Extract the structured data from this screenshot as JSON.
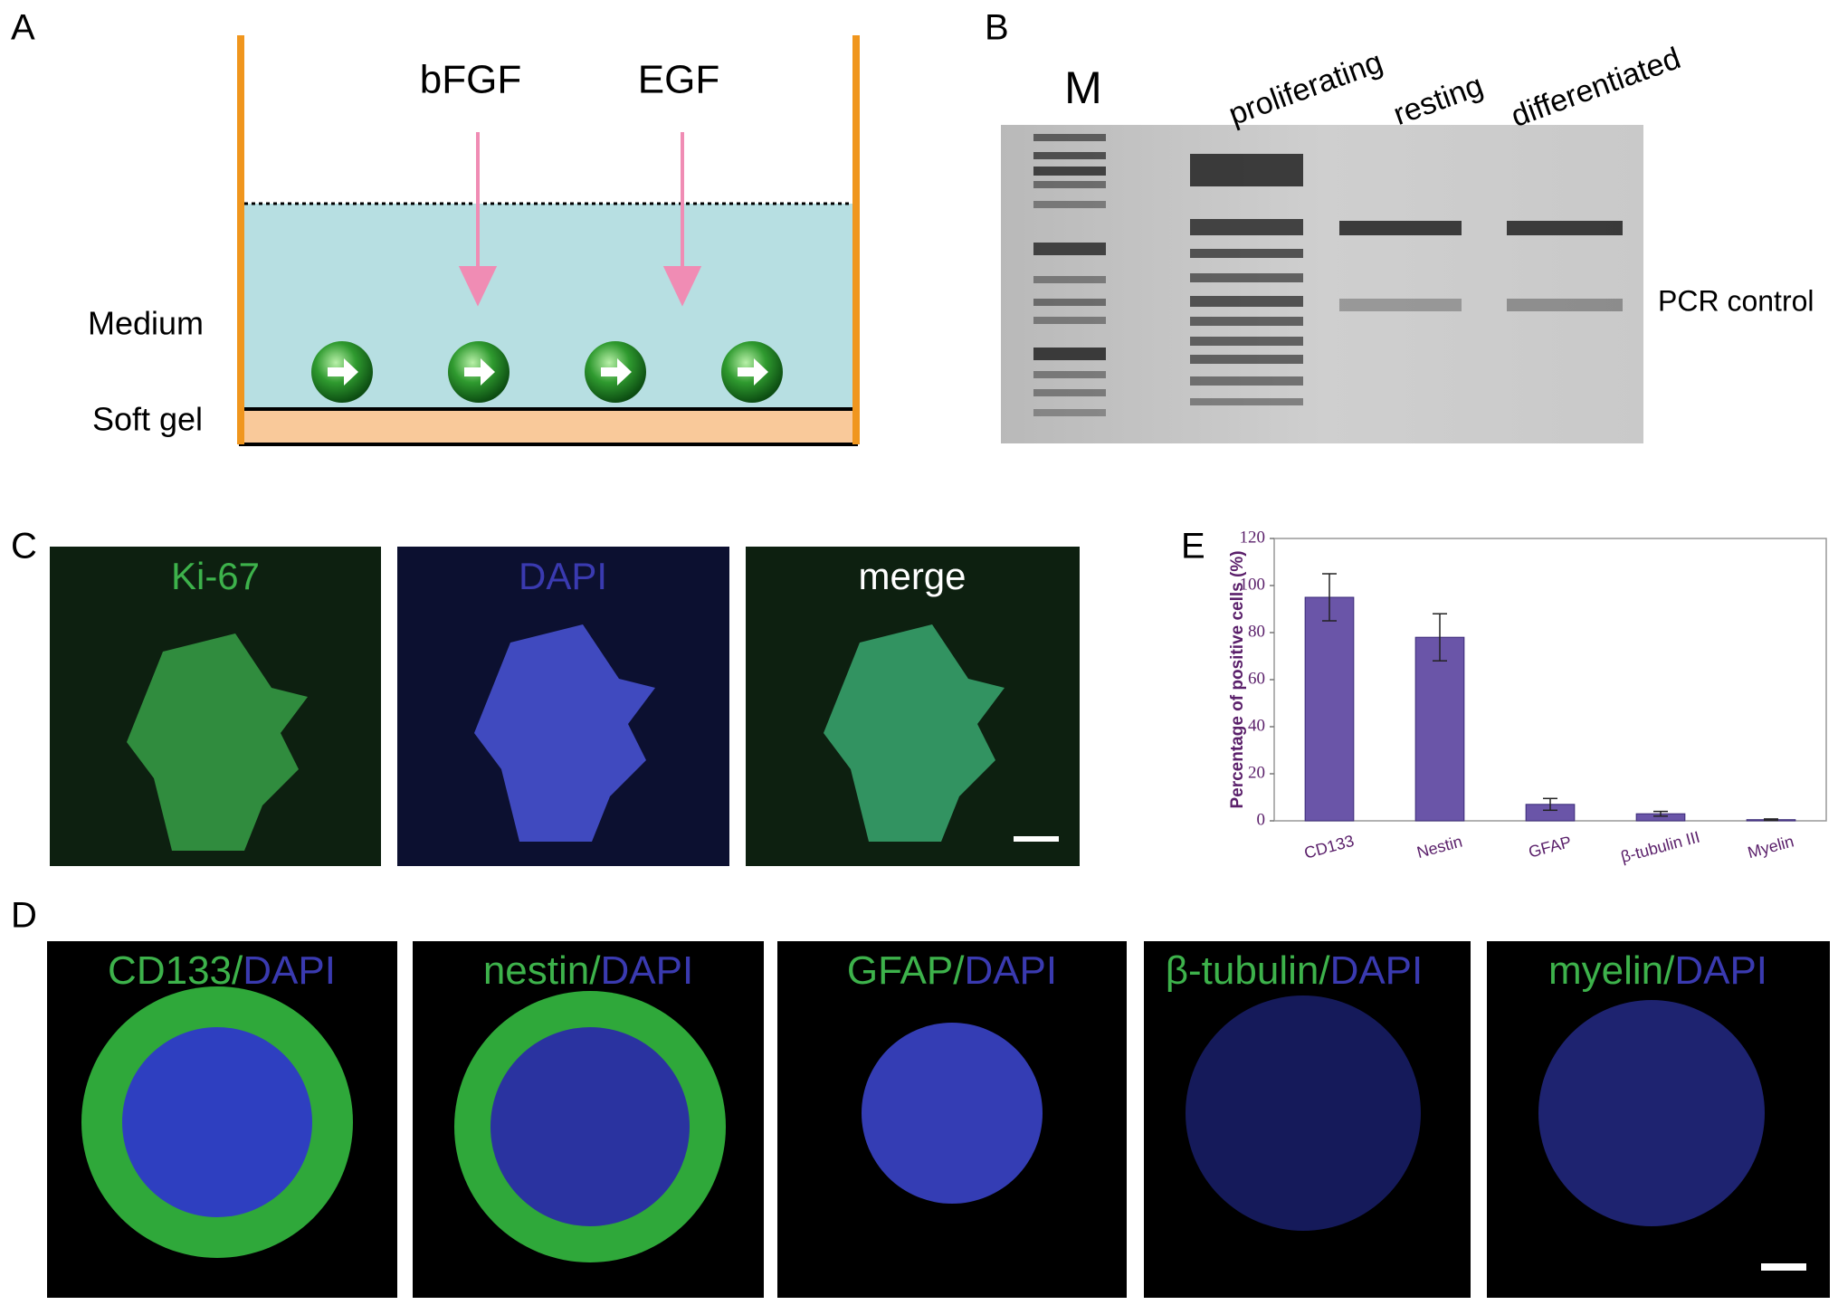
{
  "panels": {
    "a": {
      "label": "A",
      "factors": [
        "bFGF",
        "EGF"
      ],
      "layers": [
        "Medium",
        "Soft gel"
      ]
    },
    "b": {
      "label": "B",
      "lanes": [
        "M",
        "proliferating",
        "resting",
        "differentiated"
      ],
      "annotation": "PCR control"
    },
    "c": {
      "label": "C",
      "images": [
        "Ki-67",
        "DAPI",
        "merge"
      ]
    },
    "d": {
      "label": "D",
      "images": [
        {
          "marker": "CD133/",
          "stain": "DAPI"
        },
        {
          "marker": "nestin/",
          "stain": "DAPI"
        },
        {
          "marker": "GFAP/",
          "stain": "DAPI"
        },
        {
          "marker": "β-tubulin/",
          "stain": "DAPI"
        },
        {
          "marker": "myelin/",
          "stain": "DAPI"
        }
      ]
    },
    "e": {
      "label": "E"
    }
  },
  "chart_data": {
    "type": "bar",
    "y_label": "Percentage of positive cells (%)",
    "categories": [
      "CD133",
      "Nestin",
      "GFAP",
      "β-tubulin III",
      "Myelin"
    ],
    "values": [
      95,
      78,
      7,
      3,
      0.5
    ],
    "errors": [
      10,
      10,
      2.5,
      1,
      0.3
    ],
    "color": "#6a55a8",
    "ylim": [
      0,
      120
    ],
    "yticks": [
      0,
      20,
      40,
      60,
      80,
      100,
      120
    ]
  }
}
